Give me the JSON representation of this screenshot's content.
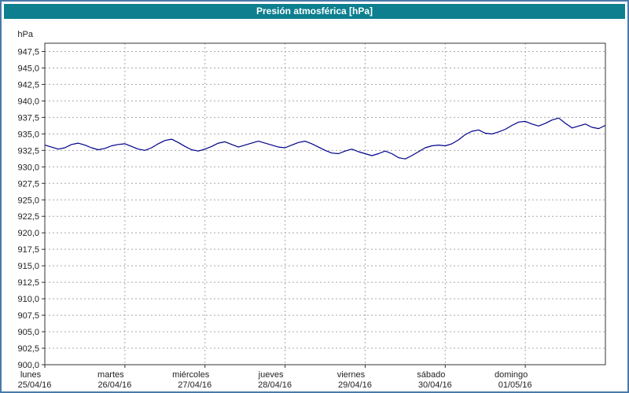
{
  "title": "Presión atmosférica [hPa]",
  "colors": {
    "title_bar": "#0d7f8f",
    "frame_border": "#4a7aaa",
    "line": "#00008b",
    "grid": "#a8a8a8",
    "axis": "#333333",
    "label_text": "#222222"
  },
  "y_axis": {
    "unit_label": "hPa",
    "min": 900,
    "max": 947.5,
    "step": 2.5,
    "top_value": 948.75,
    "tick_values": [
      947.5,
      945.0,
      942.5,
      940.0,
      937.5,
      935.0,
      932.5,
      930.0,
      927.5,
      925.0,
      922.5,
      920.0,
      917.5,
      915.0,
      912.5,
      910.0,
      907.5,
      905.0,
      902.5,
      900.0
    ],
    "tick_labels": [
      "947,5",
      "945,0",
      "942,5",
      "940,0",
      "937,5",
      "935,0",
      "932,5",
      "930,0",
      "927,5",
      "925,0",
      "922,5",
      "920,0",
      "917,5",
      "915,0",
      "912,5",
      "910,0",
      "907,5",
      "905,0",
      "902,5",
      "900,0"
    ]
  },
  "x_axis": {
    "days": [
      {
        "name": "lunes",
        "date": "25/04/16"
      },
      {
        "name": "martes",
        "date": "26/04/16"
      },
      {
        "name": "miércoles",
        "date": "27/04/16"
      },
      {
        "name": "jueves",
        "date": "28/04/16"
      },
      {
        "name": "viernes",
        "date": "29/04/16"
      },
      {
        "name": "sábado",
        "date": "30/04/16"
      },
      {
        "name": "domingo",
        "date": "01/05/16"
      }
    ]
  },
  "chart_data": {
    "type": "line",
    "title": "Presión atmosférica [hPa]",
    "xlabel": "",
    "ylabel": "hPa",
    "ylim": [
      900,
      947.5
    ],
    "grid": true,
    "legend_position": "none",
    "x_unit": "hours",
    "x_range_hours": [
      0,
      168
    ],
    "sample_interval_hours": 2,
    "series": [
      {
        "name": "Presión atmosférica",
        "values": [
          933.3,
          933.0,
          932.7,
          932.9,
          933.4,
          933.6,
          933.3,
          932.9,
          932.6,
          932.8,
          933.2,
          933.4,
          933.5,
          933.1,
          932.7,
          932.5,
          932.9,
          933.5,
          934.0,
          934.2,
          933.7,
          933.1,
          932.6,
          932.4,
          932.7,
          933.1,
          933.6,
          933.8,
          933.4,
          933.0,
          933.3,
          933.6,
          933.9,
          933.6,
          933.3,
          933.0,
          932.9,
          933.3,
          933.7,
          933.9,
          933.5,
          933.0,
          932.5,
          932.1,
          932.0,
          932.4,
          932.7,
          932.3,
          932.0,
          931.7,
          932.0,
          932.4,
          932.0,
          931.4,
          931.2,
          931.7,
          932.3,
          932.9,
          933.2,
          933.3,
          933.2,
          933.5,
          934.1,
          934.9,
          935.4,
          935.6,
          935.1,
          935.0,
          935.3,
          935.7,
          936.3,
          936.8,
          936.9,
          936.5,
          936.2,
          936.6,
          937.1,
          937.4,
          936.6,
          935.9,
          936.2,
          936.5,
          936.0,
          935.8,
          936.3
        ]
      }
    ]
  }
}
